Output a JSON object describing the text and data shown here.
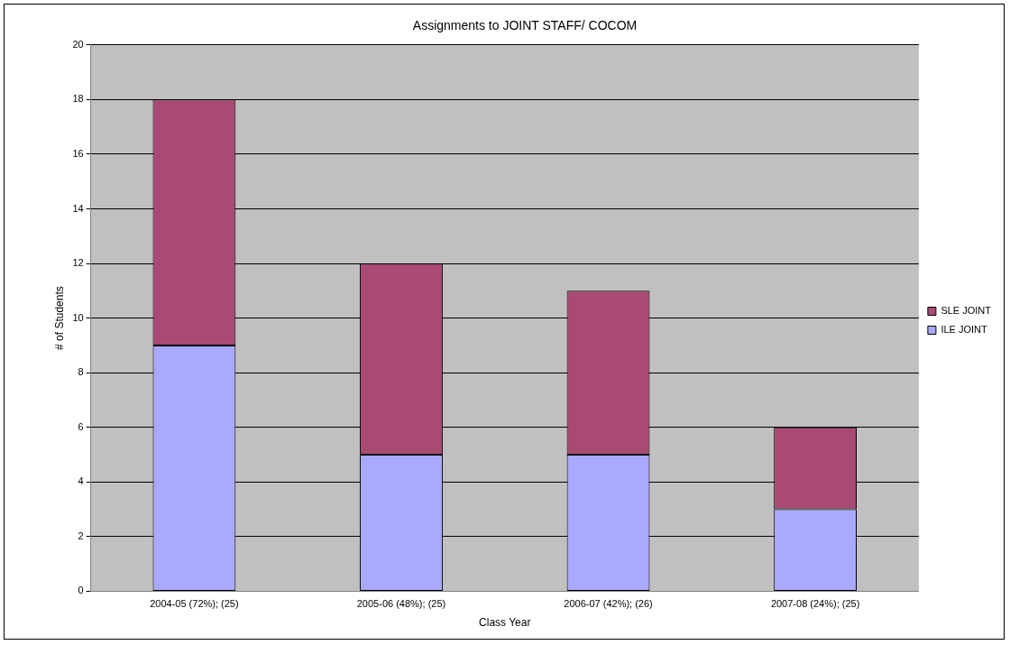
{
  "chart_data": {
    "type": "bar",
    "title": "Assignments to JOINT STAFF/ COCOM",
    "xlabel": "Class Year",
    "ylabel": "# of Students",
    "categories": [
      "2004-05 (72%); (25)",
      "2005-06 (48%); (25)",
      "2006-07 (42%); (26)",
      "2007-08 (24%); (25)"
    ],
    "series": [
      {
        "name": "ILE JOINT",
        "color": "#a9a9ff",
        "values": [
          9,
          5,
          5,
          3
        ]
      },
      {
        "name": "SLE JOINT",
        "color": "#a94a74",
        "values": [
          9,
          7,
          6,
          3
        ]
      }
    ],
    "stacked": true,
    "ylim": [
      0,
      20
    ],
    "yticks": [
      0,
      2,
      4,
      6,
      8,
      10,
      12,
      14,
      16,
      18,
      20
    ],
    "grid": "y",
    "legend": "right"
  }
}
